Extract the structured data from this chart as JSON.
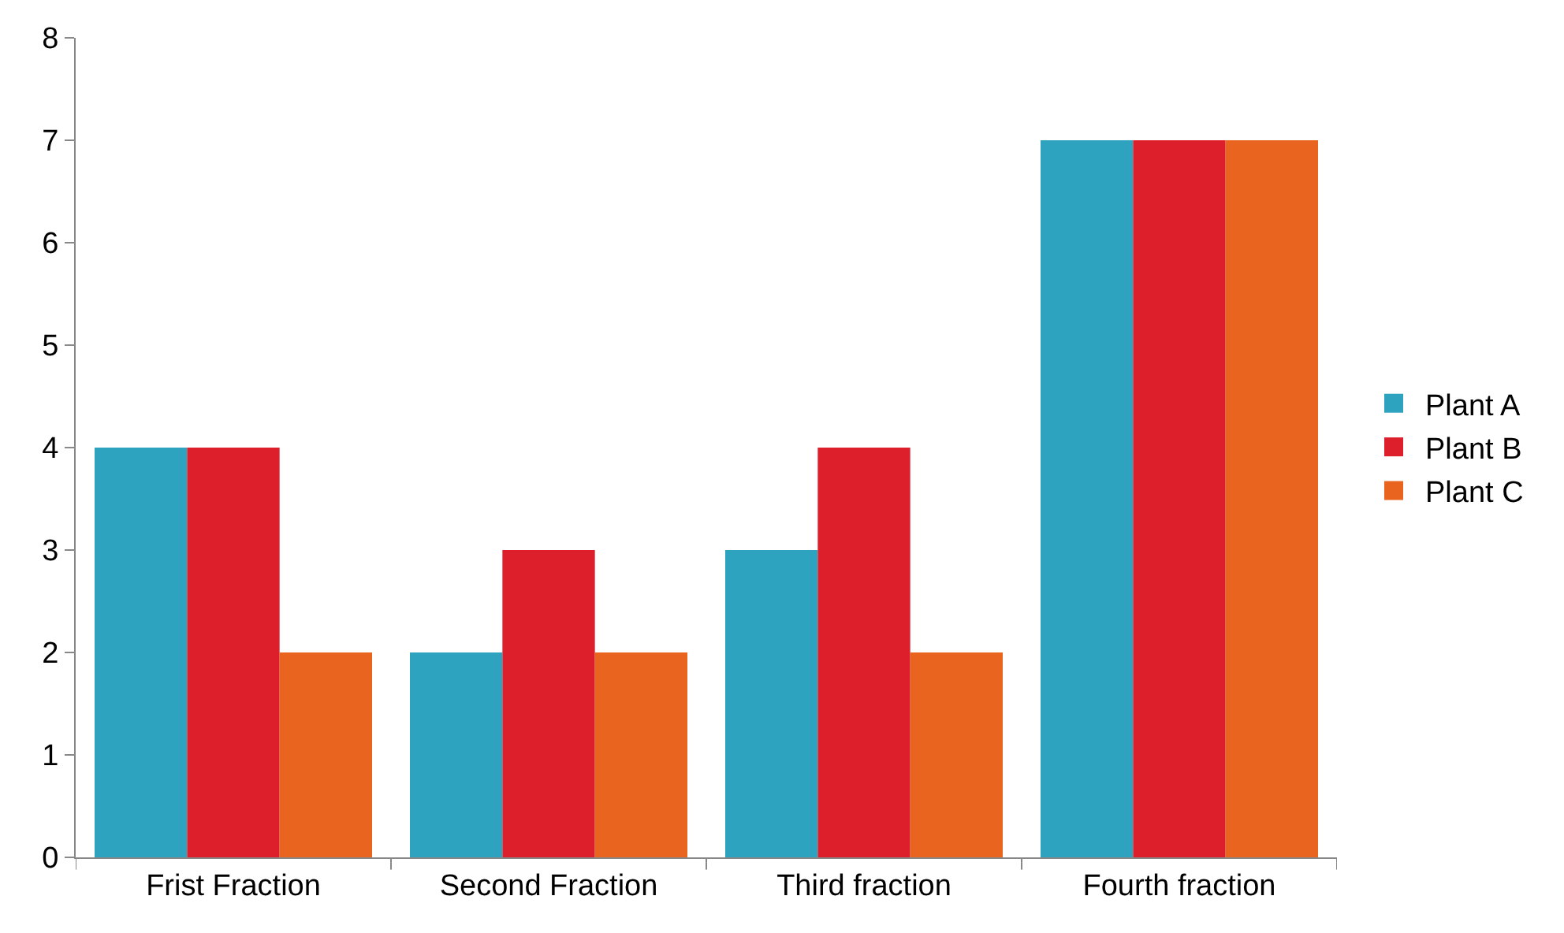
{
  "chart_data": {
    "type": "bar",
    "categories": [
      "Frist Fraction",
      "Second Fraction",
      "Third fraction",
      "Fourth fraction"
    ],
    "series": [
      {
        "name": "Plant A",
        "color": "#2ea3bf",
        "values": [
          4,
          2,
          3,
          7
        ]
      },
      {
        "name": "Plant B",
        "color": "#dc1f2b",
        "values": [
          4,
          3,
          4,
          7
        ]
      },
      {
        "name": "Plant C",
        "color": "#e8641f",
        "values": [
          2,
          2,
          2,
          7
        ]
      }
    ],
    "ylim": [
      0,
      8
    ],
    "yticks": [
      0,
      1,
      2,
      3,
      4,
      5,
      6,
      7,
      8
    ],
    "legend": "right"
  }
}
